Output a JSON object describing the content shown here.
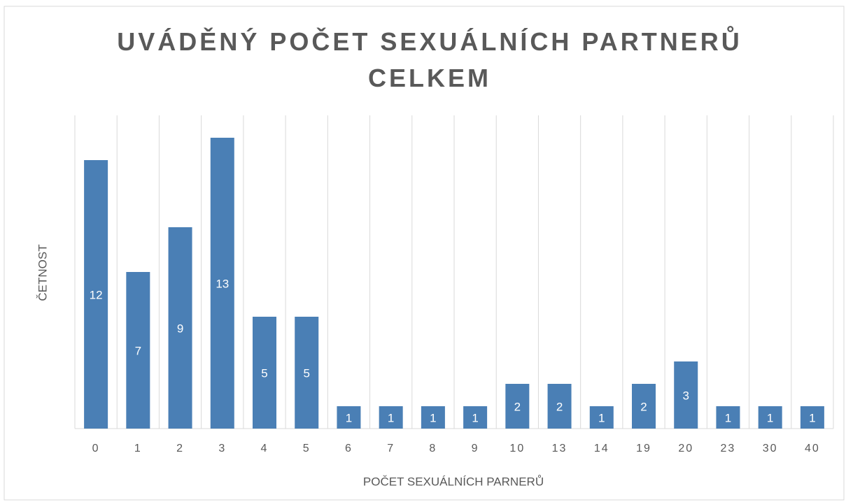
{
  "chart_data": {
    "type": "bar",
    "title": "UVÁDĚNÝ POČET SEXUÁLNÍCH PARTNERŮ CELKEM",
    "x_label": "POČET SEXUÁLNÍCH PARNERŮ",
    "y_label": "ČETNOST",
    "categories": [
      "0",
      "1",
      "2",
      "3",
      "4",
      "5",
      "6",
      "7",
      "8",
      "9",
      "10",
      "13",
      "14",
      "19",
      "20",
      "23",
      "30",
      "40"
    ],
    "values": [
      12,
      7,
      9,
      13,
      5,
      5,
      1,
      1,
      1,
      1,
      2,
      2,
      1,
      2,
      3,
      1,
      1,
      1
    ],
    "color": "#4a7fb5",
    "ylim": [
      0,
      14
    ],
    "grid": true
  }
}
